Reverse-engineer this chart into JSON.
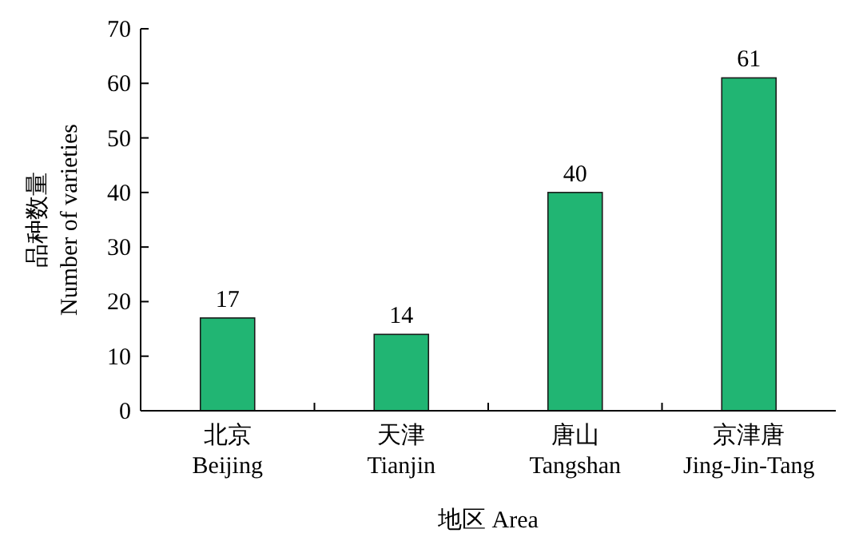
{
  "chart_data": {
    "type": "bar",
    "xlabel": "地区 Area",
    "ylabel": "品种数量\nNumber of varieties",
    "categories": [
      "北京\nBeijing",
      "天津\nTianjin",
      "唐山\nTangshan",
      "京津唐\nJing-Jin-Tang"
    ],
    "values": [
      17,
      14,
      40,
      61
    ],
    "color": "#21b573",
    "ylim": [
      0,
      70
    ],
    "yticks": [
      0,
      10,
      20,
      30,
      40,
      50,
      60,
      70
    ],
    "data_labels": true
  }
}
